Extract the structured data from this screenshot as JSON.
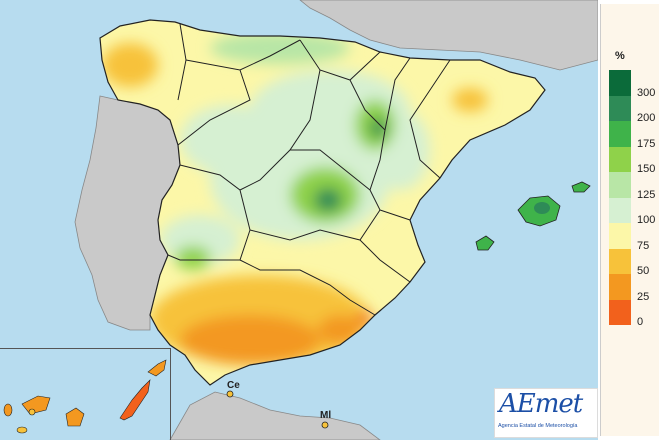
{
  "legend": {
    "unit": "%",
    "ticks": [
      "300",
      "200",
      "175",
      "150",
      "125",
      "100",
      "75",
      "50",
      "25",
      "0"
    ],
    "colors": [
      "#0b6b3a",
      "#2e8b57",
      "#3fb34a",
      "#8fd24a",
      "#b8e6a6",
      "#d6f0d2",
      "#fcf7a8",
      "#f7c23a",
      "#f39820",
      "#f2611c"
    ]
  },
  "labels": {
    "ceuta": "Ce",
    "melilla": "Ml"
  },
  "logo": {
    "word": "AEmet",
    "subtitle": "Agencia Estatal de Meteorología"
  },
  "colors": {
    "sea": "#b7dcef",
    "neighbor_land": "#c9c9c9",
    "border": "#222222"
  }
}
